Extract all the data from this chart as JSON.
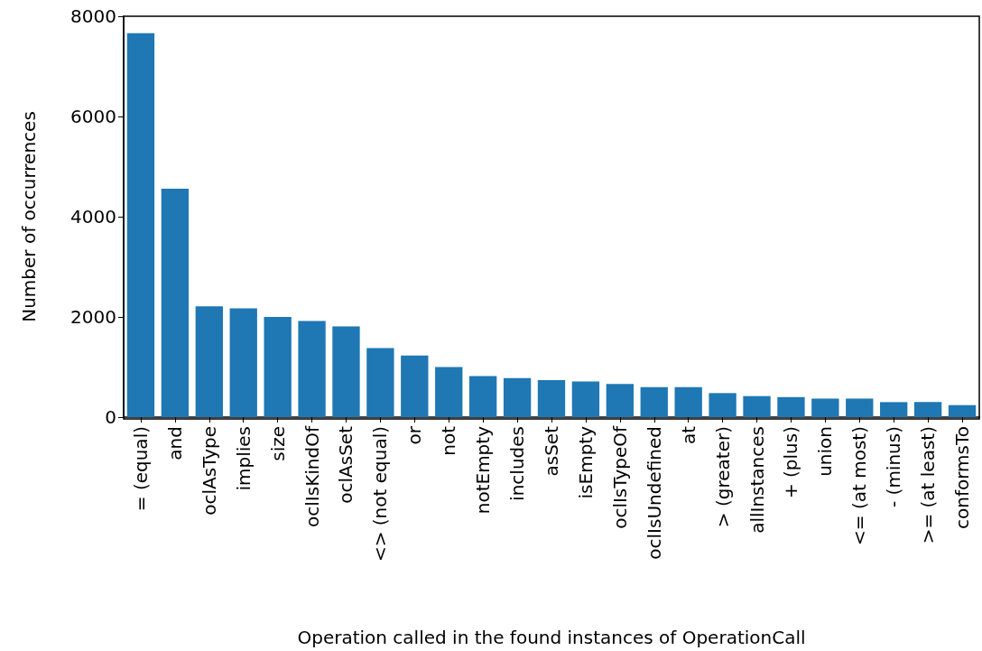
{
  "chart_data": {
    "type": "bar",
    "xlabel": "Operation called in the found instances of OperationCall",
    "ylabel": "Number of occurrences",
    "categories": [
      "= (equal)",
      "and",
      "oclAsType",
      "implies",
      "size",
      "oclIsKindOf",
      "oclAsSet",
      "<> (not equal)",
      "or",
      "not",
      "notEmpty",
      "includes",
      "asSet",
      "isEmpty",
      "oclIsTypeOf",
      "oclIsUndefined",
      "at",
      "> (greater)",
      "allInstances",
      "+ (plus)",
      "union",
      "<= (at most)",
      "- (minus)",
      ">= (at least)",
      "conformsTo"
    ],
    "values": [
      7660,
      4560,
      2210,
      2170,
      2000,
      1920,
      1810,
      1380,
      1230,
      1000,
      820,
      780,
      740,
      710,
      660,
      600,
      600,
      480,
      420,
      400,
      370,
      370,
      300,
      300,
      240
    ],
    "color": "#1f77b4",
    "ylim": [
      0,
      8000
    ],
    "yticks": [
      0,
      2000,
      4000,
      6000,
      8000
    ],
    "grid": false
  }
}
